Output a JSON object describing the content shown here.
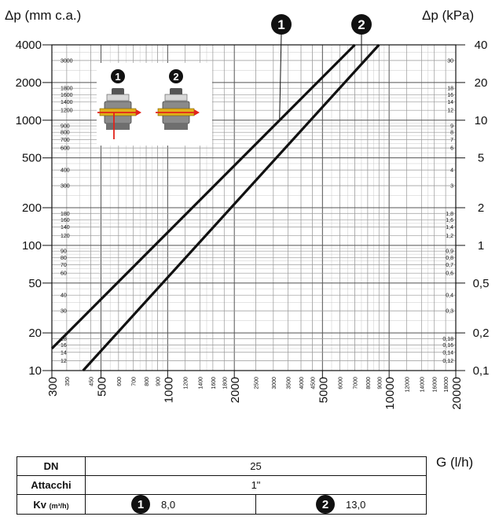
{
  "chart_data": {
    "type": "line",
    "y_left_label": "Δp (mm c.a.)",
    "y_right_label": "Δp (kPa)",
    "x_label": "G (l/h)",
    "x_log": true,
    "y_log": true,
    "xlim": [
      300,
      20000
    ],
    "ylim": [
      10,
      4000
    ],
    "x_ticks_major": [
      "300",
      "500",
      "1000",
      "2000",
      "5000",
      "10000",
      "20000"
    ],
    "x_ticks_minor": [
      "350",
      "450",
      "600",
      "700",
      "800",
      "900",
      "1200",
      "1400",
      "1600",
      "1800",
      "2500",
      "3000",
      "3500",
      "4000",
      "4500",
      "6000",
      "7000",
      "8000",
      "9000",
      "12000",
      "14000",
      "16000",
      "18000"
    ],
    "y_left_ticks_major": [
      "10",
      "20",
      "50",
      "100",
      "200",
      "500",
      "1000",
      "2000",
      "4000"
    ],
    "y_left_ticks_minor": [
      "12",
      "14",
      "16",
      "18",
      "30",
      "40",
      "60",
      "70",
      "80",
      "90",
      "120",
      "140",
      "160",
      "180",
      "300",
      "400",
      "600",
      "700",
      "800",
      "900",
      "1200",
      "1400",
      "1600",
      "1800",
      "3000"
    ],
    "y_right_ticks_major": [
      "0,1",
      "0,2",
      "0,5",
      "1",
      "2",
      "5",
      "10",
      "20",
      "40"
    ],
    "y_right_ticks_minor": [
      "0,12",
      "0,14",
      "0,16",
      "0,18",
      "0,3",
      "0,4",
      "0,6",
      "0,7",
      "0,8",
      "0,9",
      "1,2",
      "1,4",
      "1,6",
      "1,8",
      "3",
      "4",
      "6",
      "7",
      "8",
      "9",
      "12",
      "14",
      "16",
      "18",
      "30"
    ],
    "series": [
      {
        "name": "1",
        "x": [
          300,
          7000
        ],
        "y": [
          15,
          4000
        ]
      },
      {
        "name": "2",
        "x": [
          415,
          9000
        ],
        "y": [
          10,
          4000
        ]
      }
    ],
    "grid": true,
    "legend": "top, numbered markers 1 and 2"
  },
  "colors": {
    "line": "#111111",
    "grid": "#999999",
    "arrow": "#e2231a",
    "valve_body": "#8a8a8a",
    "valve_brass": "#e0b21a"
  },
  "table": {
    "dn_label": "DN",
    "dn_value": "25",
    "attacchi_label": "Attacchi",
    "attacchi_value": "1\"",
    "kv_label": "Kv",
    "kv_unit": "(m³/h)",
    "kv1_marker": "1",
    "kv1_value": "8,0",
    "kv2_marker": "2",
    "kv2_value": "13,0"
  }
}
